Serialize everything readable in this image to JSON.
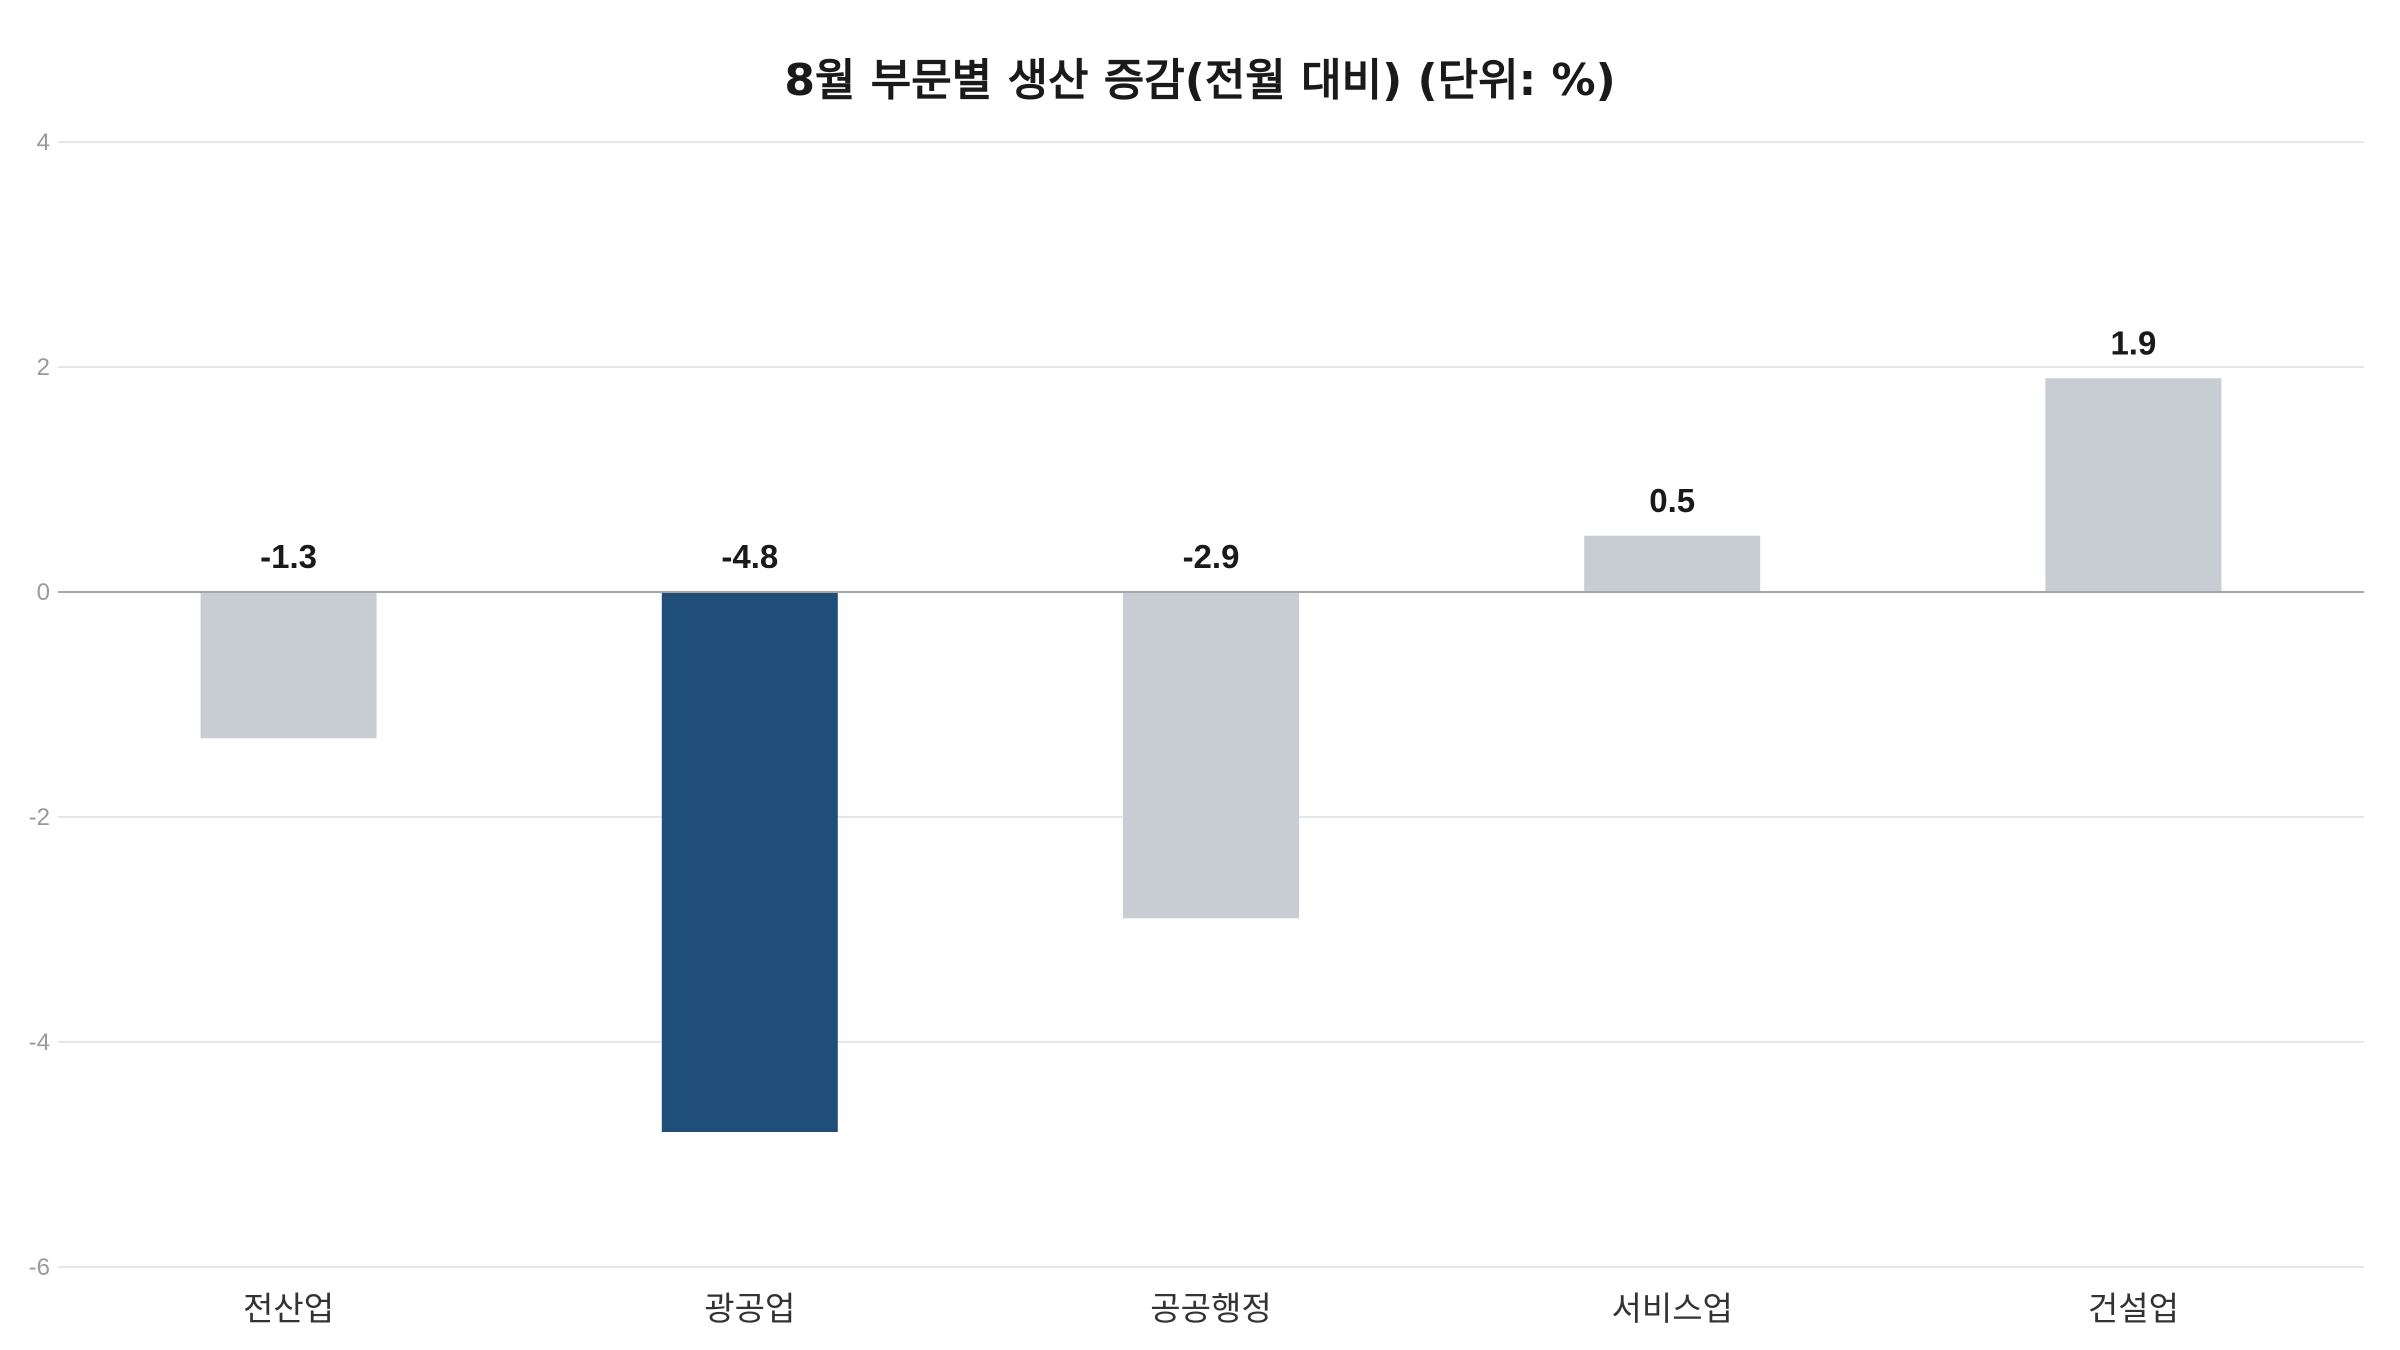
{
  "chart_data": {
    "type": "bar",
    "title": "8월 부문별 생산 증감(전월 대비) (단위: %)",
    "xlabel": "",
    "ylabel": "",
    "categories": [
      "전산업",
      "광공업",
      "공공행정",
      "서비스업",
      "건설업"
    ],
    "values": [
      -1.3,
      -4.8,
      -2.9,
      0.5,
      1.9
    ],
    "value_labels": [
      "-1.3",
      "-4.8",
      "-2.9",
      "0.5",
      "1.9"
    ],
    "ylim": [
      -6,
      4
    ],
    "yticks": [
      4,
      2,
      0,
      -2,
      -4,
      -6
    ],
    "ytick_labels": [
      "4",
      "2",
      "0",
      "-2",
      "-4",
      "-6"
    ],
    "grid": true,
    "legend": "none",
    "colors": {
      "highlight": "#1f4e79",
      "default": "#c8ccd3",
      "grid": "#e6e6e6",
      "baseline": "#a6a6a6"
    },
    "highlight_index": 1
  }
}
